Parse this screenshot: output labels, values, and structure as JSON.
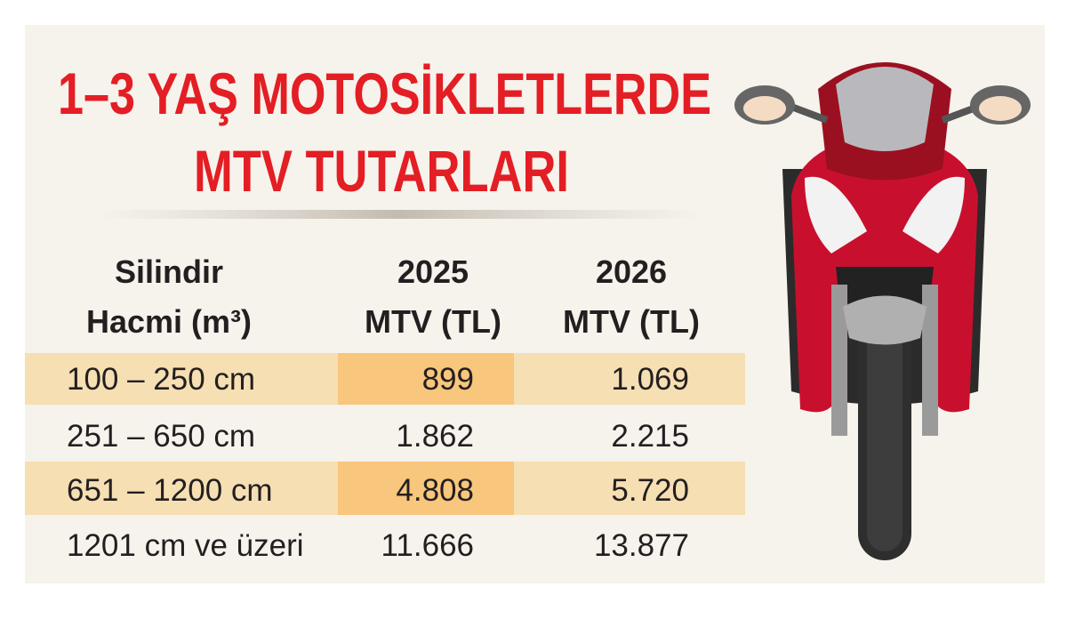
{
  "title": {
    "lines": [
      "1–3 YAŞ MOTOSİKLETLERDE",
      "MTV TUTARLARI"
    ]
  },
  "table": {
    "header": [
      [
        "Silindir",
        "Hacmi (m³)"
      ],
      [
        "2025",
        "MTV (TL)"
      ],
      [
        "2026",
        "MTV (TL)"
      ]
    ],
    "rows": [
      [
        "100 – 250 cm",
        "899",
        "1.069"
      ],
      [
        "251 – 650 cm",
        "1.862",
        "2.215"
      ],
      [
        "651 – 1200 cm",
        "4.808",
        "5.720"
      ],
      [
        "1201 cm ve üzeri",
        "11.666",
        "13.877"
      ]
    ]
  }
}
